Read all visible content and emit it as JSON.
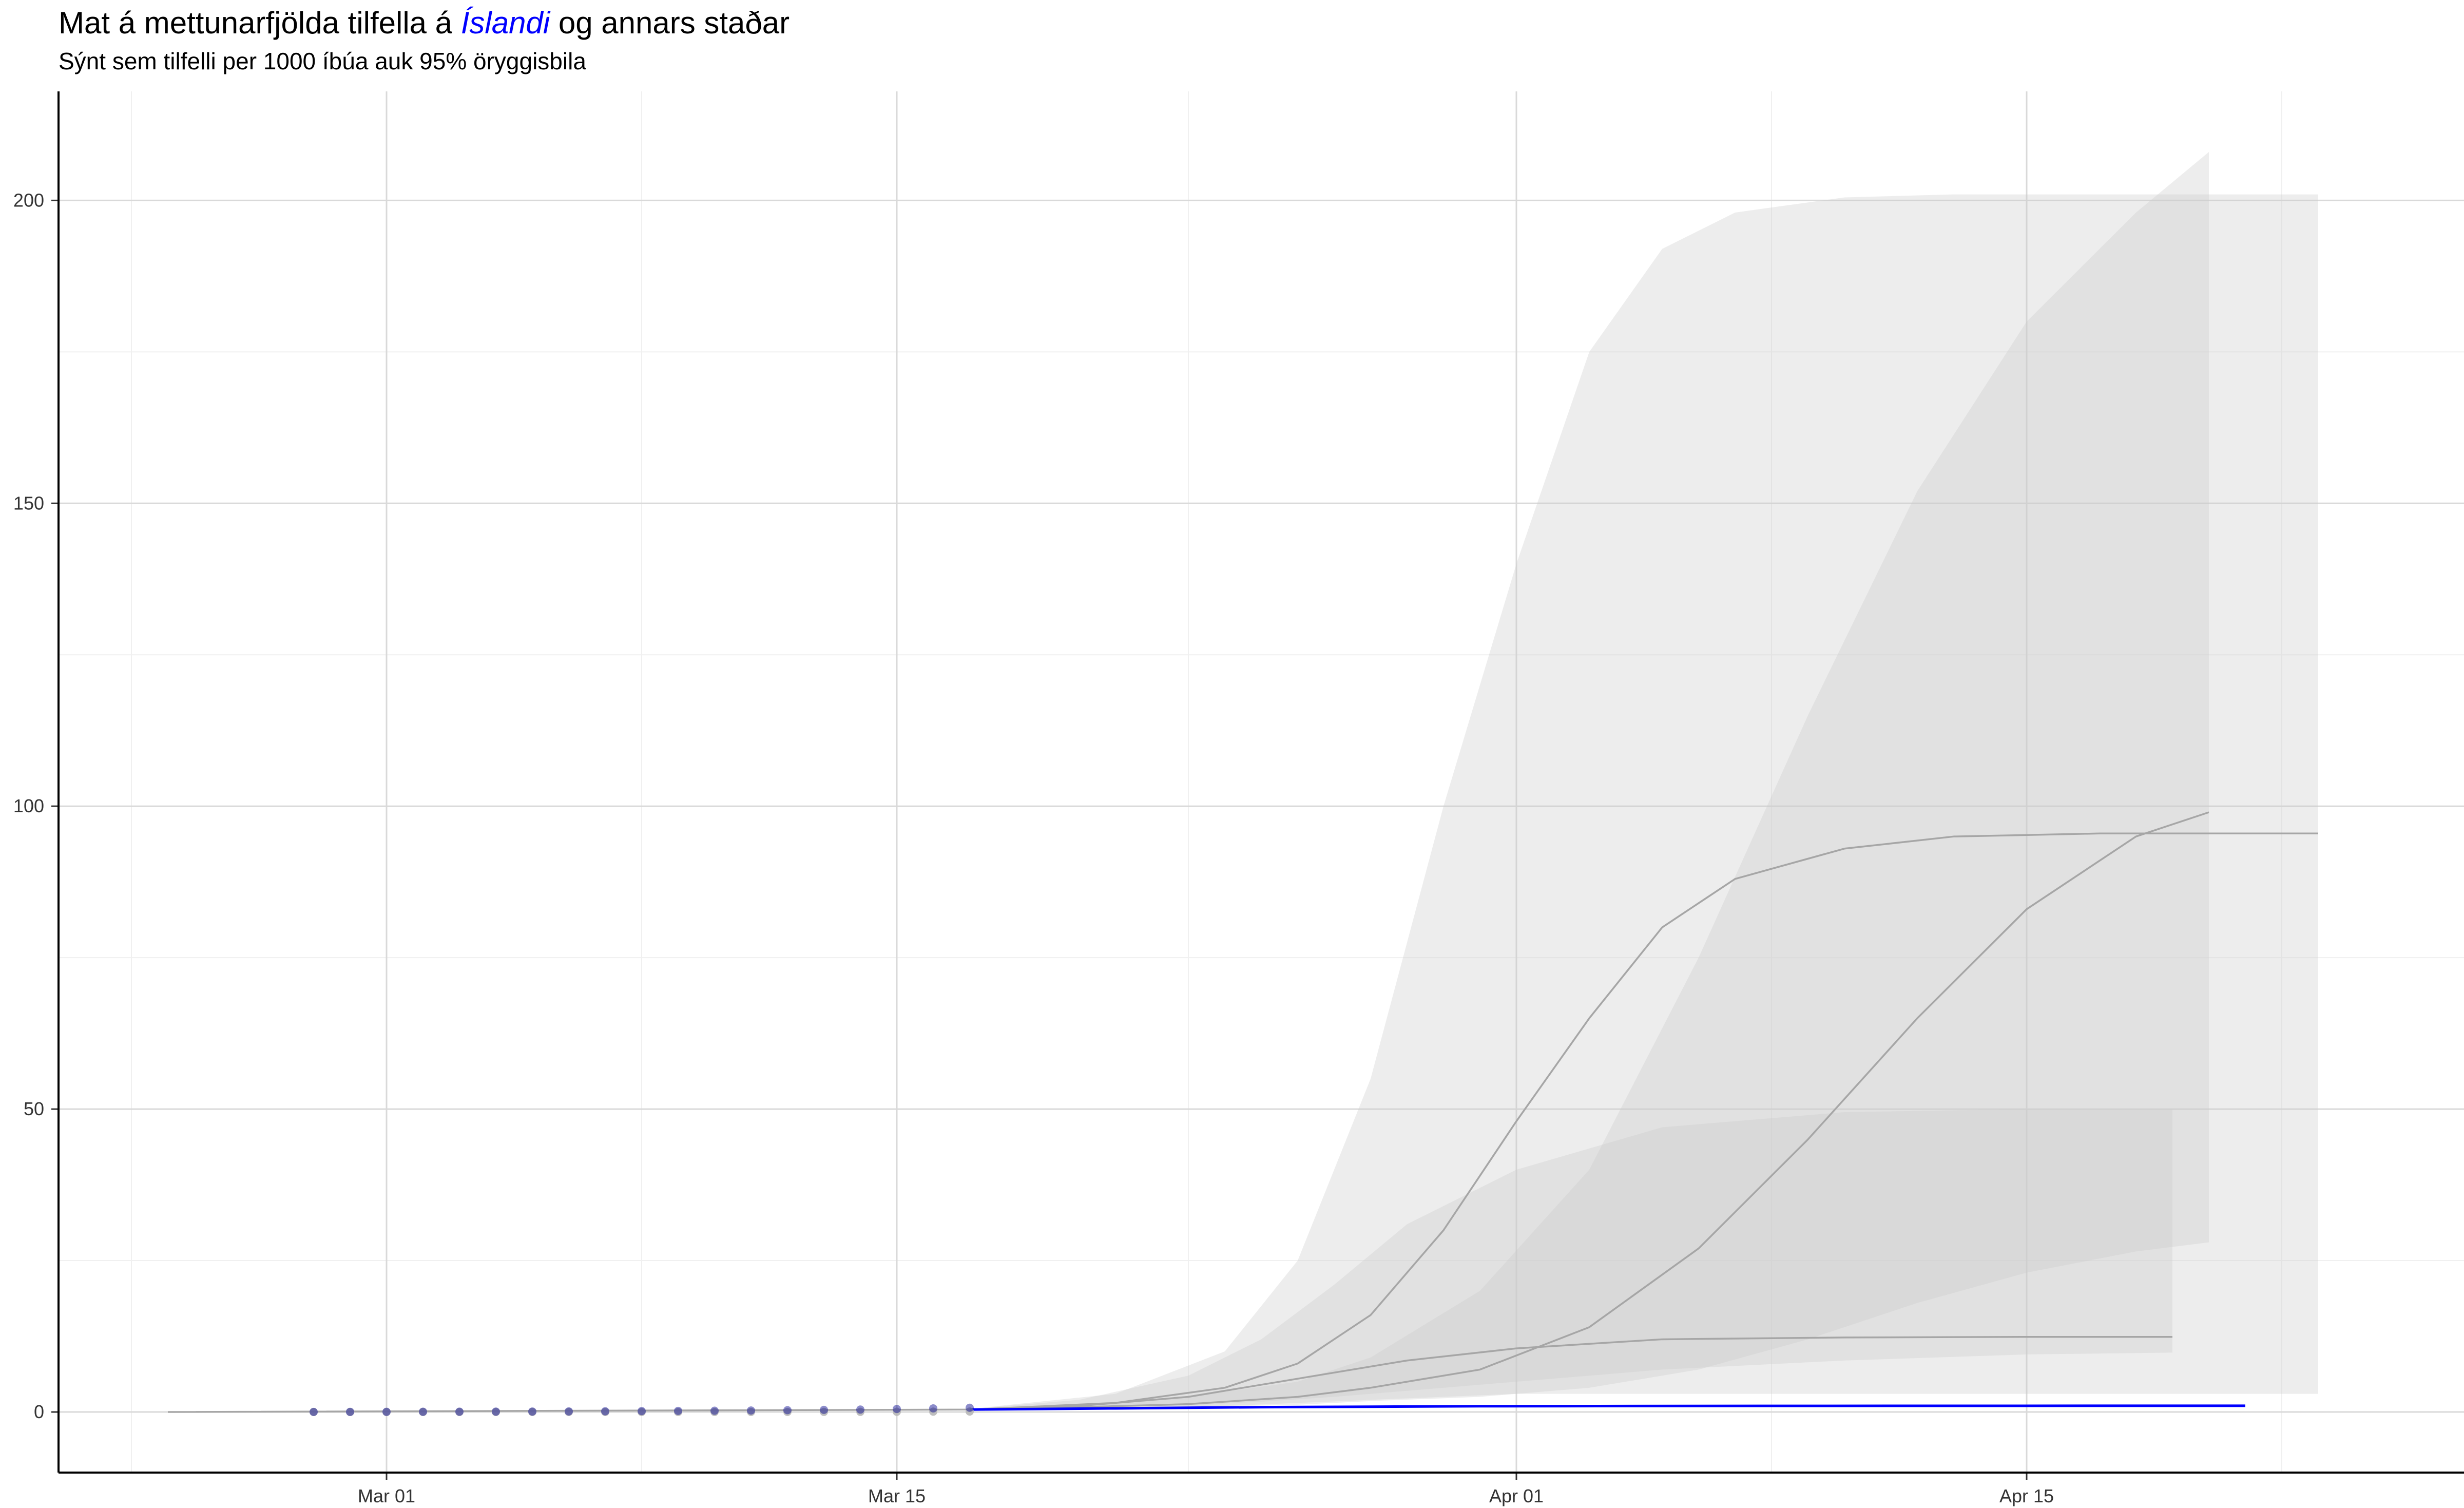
{
  "chart_data": {
    "type": "line",
    "title": {
      "prefix": "Mat á mettunarfjölda tilfella á ",
      "highlight": "Íslandi",
      "suffix": " og annars staðar"
    },
    "subtitle": "Sýnt sem tilfelli per 1000 íbúa auk 95% öryggisbila",
    "xlabel": "",
    "ylabel": "",
    "x_axis": {
      "type": "date",
      "range": [
        "2020-02-21",
        "2020-04-27"
      ],
      "ticks": [
        {
          "date": "2020-03-01",
          "label": "Mar 01"
        },
        {
          "date": "2020-03-15",
          "label": "Mar 15"
        },
        {
          "date": "2020-04-01",
          "label": "Apr 01"
        },
        {
          "date": "2020-04-15",
          "label": "Apr 15"
        }
      ]
    },
    "y_axis": {
      "range": [
        -10,
        218
      ],
      "ticks": [
        0,
        50,
        100,
        150,
        200
      ]
    },
    "grid": true,
    "colors": {
      "highlight": "#0000ff",
      "others": "#a6a6a6",
      "ribbon_dark": "#d9d9d9",
      "ribbon_light": "#ebebeb"
    },
    "series": [
      {
        "highlight": false,
        "x": [
          "2020-02-24",
          "2020-03-17",
          "2020-03-21",
          "2020-03-24",
          "2020-03-26",
          "2020-03-28",
          "2020-03-30",
          "2020-04-01",
          "2020-04-03",
          "2020-04-05",
          "2020-04-07",
          "2020-04-10",
          "2020-04-13",
          "2020-04-17",
          "2020-04-23"
        ],
        "y": [
          0,
          0.4,
          1.5,
          4,
          8,
          16,
          30,
          48,
          65,
          80,
          88,
          93,
          95,
          95.5,
          95.5
        ],
        "lower": [
          0,
          0.3,
          0.5,
          1,
          1.5,
          2,
          2.5,
          3,
          3,
          3,
          3,
          3,
          3,
          3,
          3
        ],
        "upper": [
          0,
          0.5,
          3,
          10,
          25,
          55,
          100,
          140,
          175,
          192,
          198,
          200.5,
          201,
          201,
          201
        ]
      },
      {
        "highlight": false,
        "x": [
          "2020-03-17",
          "2020-03-20",
          "2020-03-23",
          "2020-03-26",
          "2020-03-28",
          "2020-03-31",
          "2020-04-03",
          "2020-04-06",
          "2020-04-09",
          "2020-04-12",
          "2020-04-15",
          "2020-04-18",
          "2020-04-20"
        ],
        "y": [
          0.4,
          0.8,
          1.3,
          2.5,
          4,
          7,
          14,
          27,
          45,
          65,
          83,
          95,
          99
        ],
        "lower": [
          0.3,
          0.5,
          0.8,
          1.2,
          1.8,
          2.5,
          4,
          7,
          12,
          18,
          23,
          26.5,
          28
        ],
        "upper": [
          0.5,
          1.2,
          2.5,
          5,
          9,
          20,
          40,
          75,
          115,
          152,
          180,
          198,
          208
        ]
      },
      {
        "highlight": false,
        "x": [
          "2020-03-17",
          "2020-03-20",
          "2020-03-23",
          "2020-03-25",
          "2020-03-27",
          "2020-03-29",
          "2020-04-01",
          "2020-04-05",
          "2020-04-10",
          "2020-04-15",
          "2020-04-19"
        ],
        "y": [
          0.4,
          1,
          2.5,
          4.5,
          6.5,
          8.5,
          10.5,
          12,
          12.3,
          12.4,
          12.4
        ],
        "lower": [
          0.3,
          0.6,
          1.1,
          1.7,
          2.5,
          3.5,
          5,
          7,
          8.5,
          9.5,
          9.8
        ],
        "upper": [
          0.5,
          2,
          6,
          12,
          21,
          31,
          40,
          47,
          49.5,
          50,
          50
        ]
      },
      {
        "highlight": true,
        "name": "Ísland",
        "x": [
          "2020-03-17",
          "2020-03-21",
          "2020-03-25",
          "2020-03-31",
          "2020-04-06",
          "2020-04-12",
          "2020-04-21"
        ],
        "y": [
          0.4,
          0.6,
          0.8,
          0.95,
          1.0,
          1.02,
          1.03
        ]
      }
    ],
    "observed": {
      "x": [
        "2020-02-28",
        "2020-02-29",
        "2020-03-01",
        "2020-03-02",
        "2020-03-03",
        "2020-03-04",
        "2020-03-05",
        "2020-03-06",
        "2020-03-07",
        "2020-03-08",
        "2020-03-09",
        "2020-03-10",
        "2020-03-11",
        "2020-03-12",
        "2020-03-13",
        "2020-03-14",
        "2020-03-15",
        "2020-03-16",
        "2020-03-17"
      ],
      "blue": [
        0.01,
        0.02,
        0.03,
        0.04,
        0.05,
        0.06,
        0.08,
        0.1,
        0.12,
        0.15,
        0.18,
        0.21,
        0.25,
        0.3,
        0.35,
        0.4,
        0.5,
        0.6,
        0.7
      ],
      "grey": [
        0,
        0,
        0,
        0,
        0,
        0,
        0,
        0,
        0,
        0,
        0,
        0,
        0.01,
        0.01,
        0.02,
        0.03,
        0.04,
        0.06,
        0.08
      ]
    }
  }
}
